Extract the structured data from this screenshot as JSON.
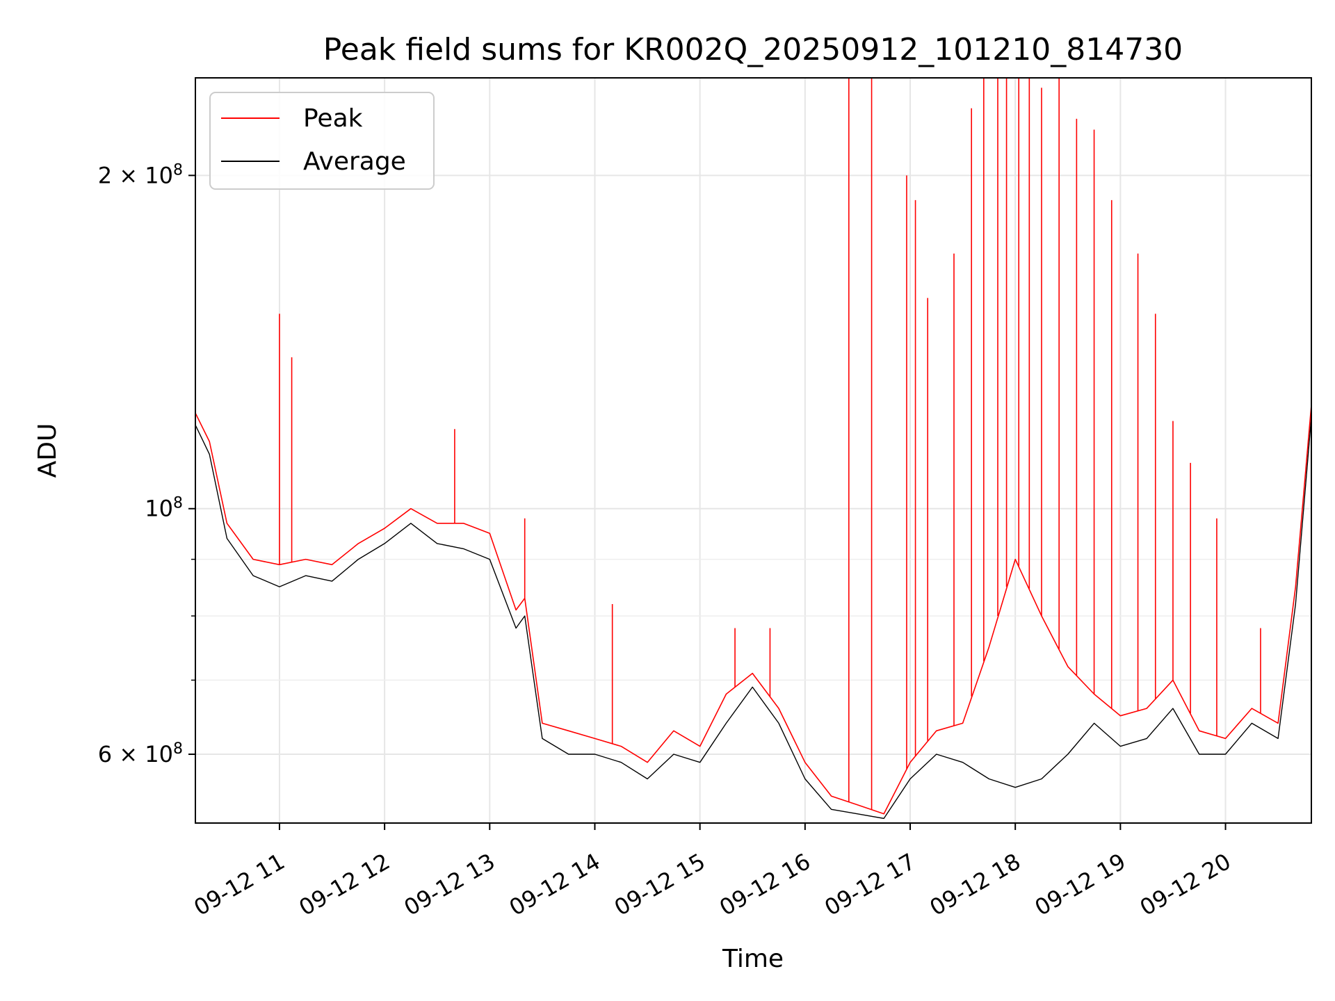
{
  "chart_data": {
    "type": "line",
    "title": "Peak field sums for KR002Q_20250912_101210_814730",
    "xlabel": "Time",
    "ylabel": "ADU",
    "y_scale": "log",
    "ylim": [
      52000000,
      245000000
    ],
    "xlim": [
      "2025-09-12 10:12",
      "2025-09-12 20:49"
    ],
    "grid": true,
    "legend_placement": "top-left",
    "x_ticks": [
      {
        "time": "2025-09-12 11:00",
        "label": "09-12 11"
      },
      {
        "time": "2025-09-12 12:00",
        "label": "09-12 12"
      },
      {
        "time": "2025-09-12 13:00",
        "label": "09-12 13"
      },
      {
        "time": "2025-09-12 14:00",
        "label": "09-12 14"
      },
      {
        "time": "2025-09-12 15:00",
        "label": "09-12 15"
      },
      {
        "time": "2025-09-12 16:00",
        "label": "09-12 16"
      },
      {
        "time": "2025-09-12 17:00",
        "label": "09-12 17"
      },
      {
        "time": "2025-09-12 18:00",
        "label": "09-12 18"
      },
      {
        "time": "2025-09-12 19:00",
        "label": "09-12 19"
      },
      {
        "time": "2025-09-12 20:00",
        "label": "09-12 20"
      }
    ],
    "y_ticks_major": [
      {
        "value": 60000000,
        "label_mantissa": "6",
        "has_mantissa": true
      },
      {
        "value": 100000000,
        "label_mantissa": "",
        "has_mantissa": false
      },
      {
        "value": 200000000,
        "label_mantissa": "2",
        "has_mantissa": true
      }
    ],
    "y_ticks_minor": [
      70000000,
      80000000,
      90000000
    ],
    "y_tick_base": "10",
    "y_tick_exponent": "8",
    "y_tick_times": "×",
    "series": [
      {
        "name": "Peak",
        "color": "#ff0000",
        "x": [
          "2025-09-12 10:12",
          "2025-09-12 10:20",
          "2025-09-12 10:30",
          "2025-09-12 10:45",
          "2025-09-12 11:00",
          "2025-09-12 11:15",
          "2025-09-12 11:30",
          "2025-09-12 11:45",
          "2025-09-12 12:00",
          "2025-09-12 12:15",
          "2025-09-12 12:30",
          "2025-09-12 12:45",
          "2025-09-12 13:00",
          "2025-09-12 13:15",
          "2025-09-12 13:20",
          "2025-09-12 13:30",
          "2025-09-12 13:45",
          "2025-09-12 14:00",
          "2025-09-12 14:15",
          "2025-09-12 14:30",
          "2025-09-12 14:45",
          "2025-09-12 15:00",
          "2025-09-12 15:15",
          "2025-09-12 15:30",
          "2025-09-12 15:45",
          "2025-09-12 16:00",
          "2025-09-12 16:15",
          "2025-09-12 16:30",
          "2025-09-12 16:45",
          "2025-09-12 17:00",
          "2025-09-12 17:15",
          "2025-09-12 17:30",
          "2025-09-12 17:45",
          "2025-09-12 18:00",
          "2025-09-12 18:15",
          "2025-09-12 18:30",
          "2025-09-12 18:45",
          "2025-09-12 19:00",
          "2025-09-12 19:15",
          "2025-09-12 19:30",
          "2025-09-12 19:45",
          "2025-09-12 20:00",
          "2025-09-12 20:15",
          "2025-09-12 20:30",
          "2025-09-12 20:40",
          "2025-09-12 20:49"
        ],
        "values": [
          122000000,
          115000000,
          97000000,
          90000000,
          89000000,
          90000000,
          89000000,
          93000000,
          96000000,
          100000000,
          97000000,
          97000000,
          95000000,
          81000000,
          83000000,
          64000000,
          63000000,
          62000000,
          61000000,
          59000000,
          63000000,
          61000000,
          68000000,
          71000000,
          66000000,
          59000000,
          55000000,
          54000000,
          53000000,
          59000000,
          63000000,
          64000000,
          75000000,
          90000000,
          80000000,
          72000000,
          68000000,
          65000000,
          66000000,
          70000000,
          63000000,
          62000000,
          66000000,
          64000000,
          85000000,
          124000000
        ],
        "spikes": [
          {
            "x": "2025-09-12 11:00",
            "y": 150000000
          },
          {
            "x": "2025-09-12 11:07",
            "y": 137000000
          },
          {
            "x": "2025-09-12 12:40",
            "y": 118000000
          },
          {
            "x": "2025-09-12 13:20",
            "y": 98000000
          },
          {
            "x": "2025-09-12 14:10",
            "y": 82000000
          },
          {
            "x": "2025-09-12 15:20",
            "y": 78000000
          },
          {
            "x": "2025-09-12 15:40",
            "y": 78000000
          },
          {
            "x": "2025-09-12 16:25",
            "y": 245000000
          },
          {
            "x": "2025-09-12 16:38",
            "y": 245000000
          },
          {
            "x": "2025-09-12 16:58",
            "y": 200000000
          },
          {
            "x": "2025-09-12 17:03",
            "y": 190000000
          },
          {
            "x": "2025-09-12 17:10",
            "y": 155000000
          },
          {
            "x": "2025-09-12 17:25",
            "y": 170000000
          },
          {
            "x": "2025-09-12 17:35",
            "y": 230000000
          },
          {
            "x": "2025-09-12 17:42",
            "y": 245000000
          },
          {
            "x": "2025-09-12 17:50",
            "y": 245000000
          },
          {
            "x": "2025-09-12 17:55",
            "y": 245000000
          },
          {
            "x": "2025-09-12 18:02",
            "y": 245000000
          },
          {
            "x": "2025-09-12 18:08",
            "y": 245000000
          },
          {
            "x": "2025-09-12 18:15",
            "y": 240000000
          },
          {
            "x": "2025-09-12 18:25",
            "y": 245000000
          },
          {
            "x": "2025-09-12 18:35",
            "y": 225000000
          },
          {
            "x": "2025-09-12 18:45",
            "y": 220000000
          },
          {
            "x": "2025-09-12 18:55",
            "y": 190000000
          },
          {
            "x": "2025-09-12 19:10",
            "y": 170000000
          },
          {
            "x": "2025-09-12 19:20",
            "y": 150000000
          },
          {
            "x": "2025-09-12 19:30",
            "y": 120000000
          },
          {
            "x": "2025-09-12 19:40",
            "y": 110000000
          },
          {
            "x": "2025-09-12 19:55",
            "y": 98000000
          },
          {
            "x": "2025-09-12 20:20",
            "y": 78000000
          }
        ]
      },
      {
        "name": "Average",
        "color": "#000000",
        "x": [
          "2025-09-12 10:12",
          "2025-09-12 10:20",
          "2025-09-12 10:30",
          "2025-09-12 10:45",
          "2025-09-12 11:00",
          "2025-09-12 11:15",
          "2025-09-12 11:30",
          "2025-09-12 11:45",
          "2025-09-12 12:00",
          "2025-09-12 12:15",
          "2025-09-12 12:30",
          "2025-09-12 12:45",
          "2025-09-12 13:00",
          "2025-09-12 13:15",
          "2025-09-12 13:20",
          "2025-09-12 13:30",
          "2025-09-12 13:45",
          "2025-09-12 14:00",
          "2025-09-12 14:15",
          "2025-09-12 14:30",
          "2025-09-12 14:45",
          "2025-09-12 15:00",
          "2025-09-12 15:15",
          "2025-09-12 15:30",
          "2025-09-12 15:45",
          "2025-09-12 16:00",
          "2025-09-12 16:15",
          "2025-09-12 16:30",
          "2025-09-12 16:45",
          "2025-09-12 17:00",
          "2025-09-12 17:15",
          "2025-09-12 17:30",
          "2025-09-12 17:45",
          "2025-09-12 18:00",
          "2025-09-12 18:15",
          "2025-09-12 18:30",
          "2025-09-12 18:45",
          "2025-09-12 19:00",
          "2025-09-12 19:15",
          "2025-09-12 19:30",
          "2025-09-12 19:45",
          "2025-09-12 20:00",
          "2025-09-12 20:15",
          "2025-09-12 20:30",
          "2025-09-12 20:40",
          "2025-09-12 20:49"
        ],
        "values": [
          119000000,
          112000000,
          94000000,
          87000000,
          85000000,
          87000000,
          86000000,
          90000000,
          93000000,
          97000000,
          93000000,
          92000000,
          90000000,
          78000000,
          80000000,
          62000000,
          60000000,
          60000000,
          59000000,
          57000000,
          60000000,
          59000000,
          64000000,
          69000000,
          64000000,
          57000000,
          53500000,
          53000000,
          52500000,
          57000000,
          60000000,
          59000000,
          57000000,
          56000000,
          57000000,
          60000000,
          64000000,
          61000000,
          62000000,
          66000000,
          60000000,
          60000000,
          64000000,
          62000000,
          82000000,
          121000000
        ]
      }
    ]
  }
}
